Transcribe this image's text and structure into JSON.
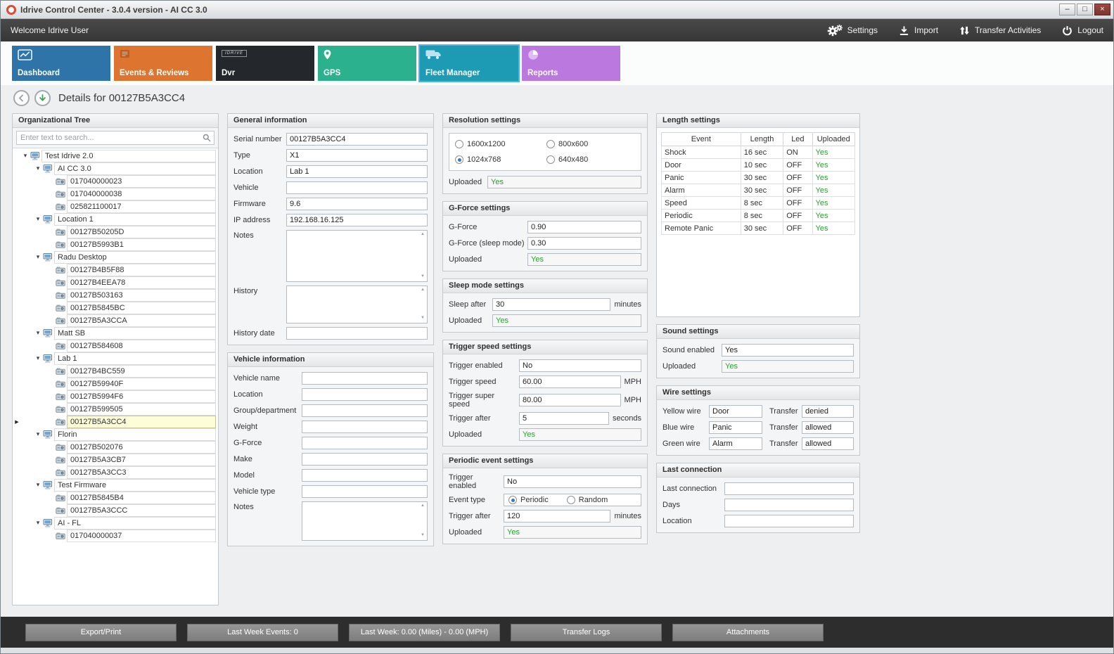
{
  "window": {
    "title": "Idrive Control Center - 3.0.4 version - AI CC 3.0",
    "minimize_glyph": "–",
    "maximize_glyph": "□",
    "close_glyph": "×"
  },
  "topbar": {
    "welcome": "Welcome Idrive User",
    "actions": [
      {
        "label": "Settings",
        "icon": "gears",
        "name": "settings-button"
      },
      {
        "label": "Import",
        "icon": "import",
        "name": "import-button"
      },
      {
        "label": "Transfer Activities",
        "icon": "transfer",
        "name": "transfer-activities-button"
      },
      {
        "label": "Logout",
        "icon": "power",
        "name": "logout-button"
      }
    ]
  },
  "tabs": [
    {
      "label": "Dashboard",
      "icon": "dashboard",
      "color": "#2e74a8",
      "selected": false
    },
    {
      "label": "Events & Reviews",
      "icon": "events",
      "color": "#dd7430",
      "selected": false
    },
    {
      "label": "Dvr",
      "badge": "IDRIVE",
      "color": "#24282c",
      "selected": false
    },
    {
      "label": "GPS",
      "icon": "gps",
      "color": "#2cb18f",
      "selected": false
    },
    {
      "label": "Fleet Manager",
      "icon": "fleet",
      "color": "#1e9bb4",
      "selected": true
    },
    {
      "label": "Reports",
      "icon": "reports",
      "color": "#bb79e0",
      "selected": false
    }
  ],
  "details": {
    "title": "Details for 00127B5A3CC4"
  },
  "org_tree": {
    "title": "Organizational Tree",
    "search_placeholder": "Enter text to search...",
    "nodes": [
      {
        "label": "Test Idrive 2.0",
        "level": 0,
        "type": "group",
        "expanded": true,
        "selected": false
      },
      {
        "label": "AI CC 3.0",
        "level": 1,
        "type": "group",
        "expanded": true,
        "selected": false
      },
      {
        "label": "017040000023",
        "level": 2,
        "type": "device",
        "selected": false
      },
      {
        "label": "017040000038",
        "level": 2,
        "type": "device",
        "selected": false
      },
      {
        "label": "025821100017",
        "level": 2,
        "type": "device",
        "selected": false
      },
      {
        "label": "Location 1",
        "level": 1,
        "type": "group",
        "expanded": true,
        "selected": false
      },
      {
        "label": "00127B50205D",
        "level": 2,
        "type": "device",
        "selected": false
      },
      {
        "label": "00127B5993B1",
        "level": 2,
        "type": "device",
        "selected": false
      },
      {
        "label": "Radu Desktop",
        "level": 1,
        "type": "group",
        "expanded": true,
        "selected": false
      },
      {
        "label": "00127B4B5F88",
        "level": 2,
        "type": "device",
        "selected": false
      },
      {
        "label": "00127B4EEA78",
        "level": 2,
        "type": "device",
        "selected": false
      },
      {
        "label": "00127B503163",
        "level": 2,
        "type": "device",
        "selected": false
      },
      {
        "label": "00127B5845BC",
        "level": 2,
        "type": "device",
        "selected": false
      },
      {
        "label": "00127B5A3CCA",
        "level": 2,
        "type": "device",
        "selected": false
      },
      {
        "label": "Matt SB",
        "level": 1,
        "type": "group",
        "expanded": true,
        "selected": false
      },
      {
        "label": "00127B584608",
        "level": 2,
        "type": "device",
        "selected": false
      },
      {
        "label": "Lab 1",
        "level": 1,
        "type": "group",
        "expanded": true,
        "selected": false
      },
      {
        "label": "00127B4BC559",
        "level": 2,
        "type": "device",
        "selected": false
      },
      {
        "label": "00127B59940F",
        "level": 2,
        "type": "device",
        "selected": false
      },
      {
        "label": "00127B5994F6",
        "level": 2,
        "type": "device",
        "selected": false
      },
      {
        "label": "00127B599505",
        "level": 2,
        "type": "device",
        "selected": false
      },
      {
        "label": "00127B5A3CC4",
        "level": 2,
        "type": "device",
        "selected": true
      },
      {
        "label": "Florin",
        "level": 1,
        "type": "group",
        "expanded": true,
        "selected": false
      },
      {
        "label": "00127B502076",
        "level": 2,
        "type": "device",
        "selected": false
      },
      {
        "label": "00127B5A3CB7",
        "level": 2,
        "type": "device",
        "selected": false
      },
      {
        "label": "00127B5A3CC3",
        "level": 2,
        "type": "device",
        "selected": false
      },
      {
        "label": "Test Firmware",
        "level": 1,
        "type": "group",
        "expanded": true,
        "selected": false
      },
      {
        "label": "00127B5845B4",
        "level": 2,
        "type": "device",
        "selected": false
      },
      {
        "label": "00127B5A3CCC",
        "level": 2,
        "type": "device",
        "selected": false
      },
      {
        "label": "AI - FL",
        "level": 1,
        "type": "group",
        "expanded": true,
        "selected": false
      },
      {
        "label": "017040000037",
        "level": 2,
        "type": "device",
        "selected": false
      }
    ]
  },
  "general_info": {
    "title": "General information",
    "fields": [
      {
        "label": "Serial number",
        "value": "00127B5A3CC4"
      },
      {
        "label": "Type",
        "value": "X1"
      },
      {
        "label": "Location",
        "value": "Lab 1"
      },
      {
        "label": "Vehicle",
        "value": ""
      },
      {
        "label": "Firmware",
        "value": "9.6"
      },
      {
        "label": "IP address",
        "value": "192.168.16.125"
      },
      {
        "label": "Notes",
        "value": "",
        "multiline": true
      },
      {
        "label": "History",
        "value": "",
        "multiline": true
      },
      {
        "label": "History date",
        "value": ""
      }
    ]
  },
  "vehicle_info": {
    "title": "Vehicle information",
    "fields": [
      {
        "label": "Vehicle name",
        "value": ""
      },
      {
        "label": "Location",
        "value": ""
      },
      {
        "label": "Group/department",
        "value": ""
      },
      {
        "label": "Weight",
        "value": ""
      },
      {
        "label": "G-Force",
        "value": ""
      },
      {
        "label": "Make",
        "value": ""
      },
      {
        "label": "Model",
        "value": ""
      },
      {
        "label": "Vehicle type",
        "value": ""
      },
      {
        "label": "Notes",
        "value": "",
        "multiline": true
      }
    ]
  },
  "resolution_settings": {
    "title": "Resolution settings",
    "options": [
      {
        "label": "1600x1200",
        "checked": false
      },
      {
        "label": "800x600",
        "checked": false
      },
      {
        "label": "1024x768",
        "checked": true
      },
      {
        "label": "640x480",
        "checked": false
      }
    ],
    "fields": [
      {
        "label": "Uploaded",
        "value": "Yes",
        "green": true
      }
    ]
  },
  "gforce_settings": {
    "title": "G-Force settings",
    "fields": [
      {
        "label": "G-Force",
        "value": "0.90"
      },
      {
        "label": "G-Force (sleep mode)",
        "value": "0.30"
      },
      {
        "label": "Uploaded",
        "value": "Yes",
        "green": true
      }
    ]
  },
  "sleep_settings": {
    "title": "Sleep mode settings",
    "fields": [
      {
        "label": "Sleep after",
        "value": "30",
        "unit": "minutes"
      },
      {
        "label": "Uploaded",
        "value": "Yes",
        "green": true
      }
    ]
  },
  "trigger_speed_settings": {
    "title": "Trigger speed settings",
    "fields": [
      {
        "label": "Trigger enabled",
        "value": "No"
      },
      {
        "label": "Trigger speed",
        "value": "60.00",
        "unit": "MPH"
      },
      {
        "label": "Trigger super speed",
        "value": "80.00",
        "unit": "MPH"
      },
      {
        "label": "Trigger after",
        "value": "5",
        "unit": "seconds"
      },
      {
        "label": "Uploaded",
        "value": "Yes",
        "green": true
      }
    ]
  },
  "periodic_settings": {
    "title": "Periodic event settings",
    "fields_top": [
      {
        "label": "Trigger enabled",
        "value": "No"
      }
    ],
    "event_type_label": "Event type",
    "event_type_options": [
      {
        "label": "Periodic",
        "checked": true
      },
      {
        "label": "Random",
        "checked": false
      }
    ],
    "fields_bottom": [
      {
        "label": "Trigger after",
        "value": "120",
        "unit": "minutes"
      },
      {
        "label": "Uploaded",
        "value": "Yes",
        "green": true
      }
    ]
  },
  "length_settings": {
    "title": "Length settings",
    "columns": [
      "Event",
      "Length",
      "Led",
      "Uploaded"
    ],
    "rows": [
      [
        "Shock",
        "16 sec",
        "ON",
        "Yes"
      ],
      [
        "Door",
        "10 sec",
        "OFF",
        "Yes"
      ],
      [
        "Panic",
        "30 sec",
        "OFF",
        "Yes"
      ],
      [
        "Alarm",
        "30 sec",
        "OFF",
        "Yes"
      ],
      [
        "Speed",
        "8 sec",
        "OFF",
        "Yes"
      ],
      [
        "Periodic",
        "8 sec",
        "OFF",
        "Yes"
      ],
      [
        "Remote Panic",
        "30 sec",
        "OFF",
        "Yes"
      ]
    ]
  },
  "sound_settings": {
    "title": "Sound settings",
    "fields": [
      {
        "label": "Sound enabled",
        "value": "Yes"
      },
      {
        "label": "Uploaded",
        "value": "Yes",
        "green": true
      }
    ]
  },
  "wire_settings": {
    "title": "Wire settings",
    "rows": [
      {
        "wire_label": "Yellow wire",
        "wire_value": "Door",
        "transfer_label": "Transfer",
        "transfer_value": "denied"
      },
      {
        "wire_label": "Blue wire",
        "wire_value": "Panic",
        "transfer_label": "Transfer",
        "transfer_value": "allowed"
      },
      {
        "wire_label": "Green wire",
        "wire_value": "Alarm",
        "transfer_label": "Transfer",
        "transfer_value": "allowed"
      }
    ]
  },
  "last_connection": {
    "title": "Last connection",
    "fields": [
      {
        "label": "Last connection",
        "value": ""
      },
      {
        "label": "Days",
        "value": ""
      },
      {
        "label": "Location",
        "value": ""
      }
    ]
  },
  "bottom_bar": {
    "buttons": [
      "Export/Print",
      "Last Week Events: 0",
      "Last Week: 0.00 (Miles) - 0.00 (MPH)",
      "Transfer Logs",
      "Attachments"
    ]
  }
}
